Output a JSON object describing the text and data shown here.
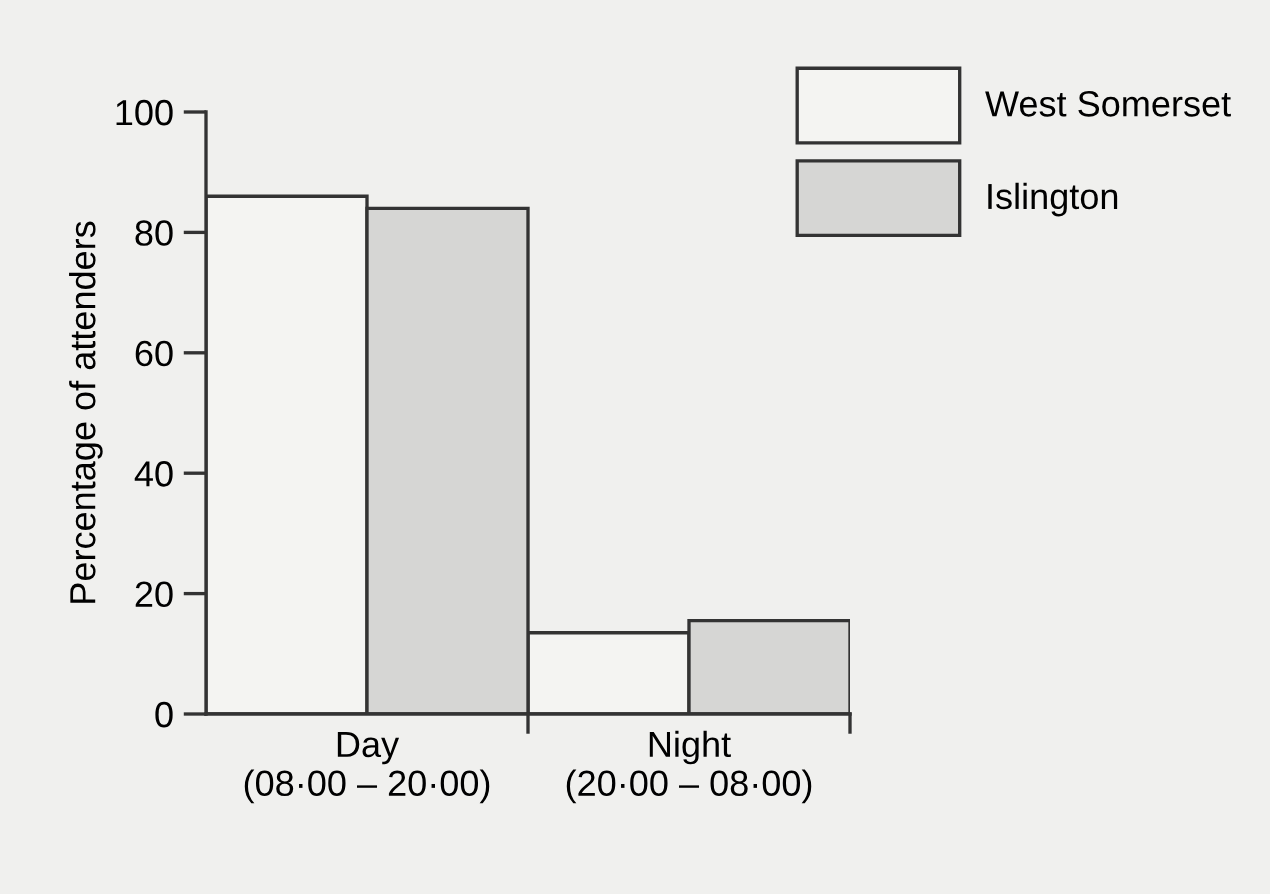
{
  "chart_data": {
    "type": "bar",
    "ylabel": "Percentage of attenders",
    "categories": [
      "Day\n(08·00 – 20·00)",
      "Night\n(20·00 – 08·00)"
    ],
    "series": [
      {
        "name": "West Somerset",
        "color": "#f4f4f2",
        "values": [
          86,
          13.5
        ]
      },
      {
        "name": "Islington",
        "color": "#d6d6d4",
        "values": [
          84,
          15.5
        ]
      }
    ],
    "ylim": [
      0,
      100
    ],
    "yticks": [
      0,
      20,
      40,
      60,
      80,
      100
    ],
    "grid": false,
    "legend": "top right"
  }
}
